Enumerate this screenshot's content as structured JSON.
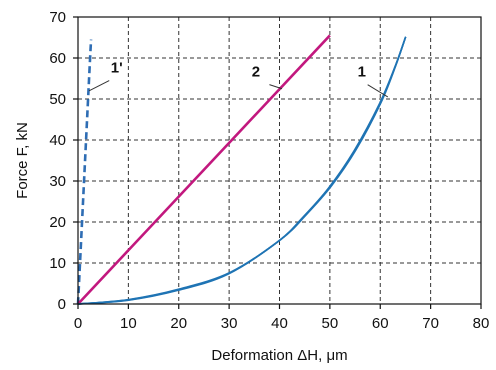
{
  "chart_data": {
    "type": "line",
    "title": "",
    "xlabel": "Deformation ΔH, μm",
    "ylabel": "Force F, kN",
    "xlim": [
      0,
      80
    ],
    "ylim": [
      0,
      70
    ],
    "x_ticks": [
      "0",
      "10",
      "20",
      "30",
      "40",
      "50",
      "60",
      "70",
      "80"
    ],
    "y_ticks": [
      "0",
      "10",
      "20",
      "30",
      "40",
      "50",
      "60",
      "70"
    ],
    "grid": true,
    "grid_style": "dashed",
    "series": [
      {
        "name": "1'",
        "color": "#2e6db4",
        "style": "dashed",
        "points": [
          [
            0,
            0
          ],
          [
            0.6,
            15
          ],
          [
            1.2,
            30
          ],
          [
            1.8,
            45
          ],
          [
            2.4,
            60
          ],
          [
            2.6,
            64.5
          ]
        ]
      },
      {
        "name": "2",
        "color": "#c2187e",
        "style": "solid",
        "points": [
          [
            0,
            0
          ],
          [
            50,
            65.5
          ]
        ]
      },
      {
        "name": "1",
        "color": "#1f74b4",
        "style": "solid",
        "points": [
          [
            0,
            0
          ],
          [
            10,
            1.0
          ],
          [
            20,
            3.5
          ],
          [
            30,
            7.5
          ],
          [
            40,
            15.5
          ],
          [
            45,
            21.5
          ],
          [
            50,
            28.5
          ],
          [
            55,
            37.5
          ],
          [
            60,
            49
          ],
          [
            63,
            58
          ],
          [
            65,
            65
          ]
        ]
      }
    ]
  }
}
